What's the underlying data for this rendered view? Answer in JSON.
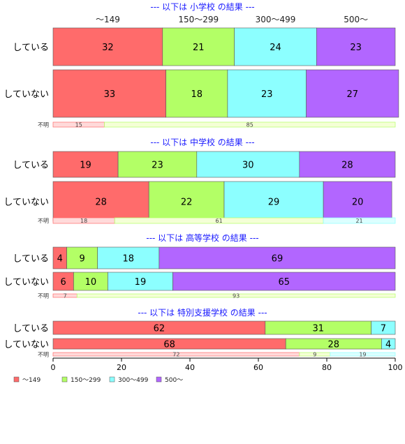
{
  "chart_data": {
    "type": "bar",
    "orientation": "horizontal",
    "stacked": true,
    "xlim": [
      0,
      100
    ],
    "xticks": [
      0,
      20,
      40,
      60,
      80,
      100
    ],
    "column_headers": [
      "〜149",
      "150〜299",
      "300〜499",
      "500〜"
    ],
    "legend": {
      "placement": "bottom-left",
      "entries": [
        "〜149",
        "150〜299",
        "300〜499",
        "500〜"
      ]
    },
    "colors": {
      "main": [
        "#ff6b6b",
        "#b3ff66",
        "#8cffff",
        "#b266ff"
      ],
      "light": [
        "#ffdada",
        "#f4ffd6",
        "#dcffff",
        "#f2d9ff"
      ],
      "title": "#1a1aff"
    },
    "panels": [
      {
        "title": "--- 以下は 小学校 の結果 ---",
        "show_column_headers": true,
        "rows": [
          {
            "label": "している",
            "values": [
              32,
              21,
              24,
              23
            ]
          },
          {
            "label": "していない",
            "values": [
              33,
              18,
              23,
              27
            ]
          }
        ],
        "unknown": {
          "label": "不明",
          "values": [
            15,
            85,
            0,
            0
          ]
        }
      },
      {
        "title": "--- 以下は 中学校 の結果 ---",
        "show_column_headers": false,
        "rows": [
          {
            "label": "している",
            "values": [
              19,
              23,
              30,
              28
            ]
          },
          {
            "label": "していない",
            "values": [
              28,
              22,
              29,
              20
            ]
          }
        ],
        "unknown": {
          "label": "不明",
          "values": [
            18,
            61,
            21,
            0
          ]
        }
      },
      {
        "title": "--- 以下は 高等学校 の結果 ---",
        "show_column_headers": false,
        "rows": [
          {
            "label": "している",
            "values": [
              4,
              9,
              18,
              69
            ]
          },
          {
            "label": "していない",
            "values": [
              6,
              10,
              19,
              65
            ]
          }
        ],
        "unknown": {
          "label": "不明",
          "values": [
            7,
            93,
            0,
            0
          ]
        }
      },
      {
        "title": "--- 以下は 特別支援学校 の結果 ---",
        "show_column_headers": false,
        "rows": [
          {
            "label": "している",
            "values": [
              62,
              31,
              7,
              0
            ]
          },
          {
            "label": "していない",
            "values": [
              68,
              28,
              4,
              0
            ]
          }
        ],
        "unknown": {
          "label": "不明",
          "values": [
            72,
            9,
            19,
            0
          ]
        }
      }
    ]
  }
}
